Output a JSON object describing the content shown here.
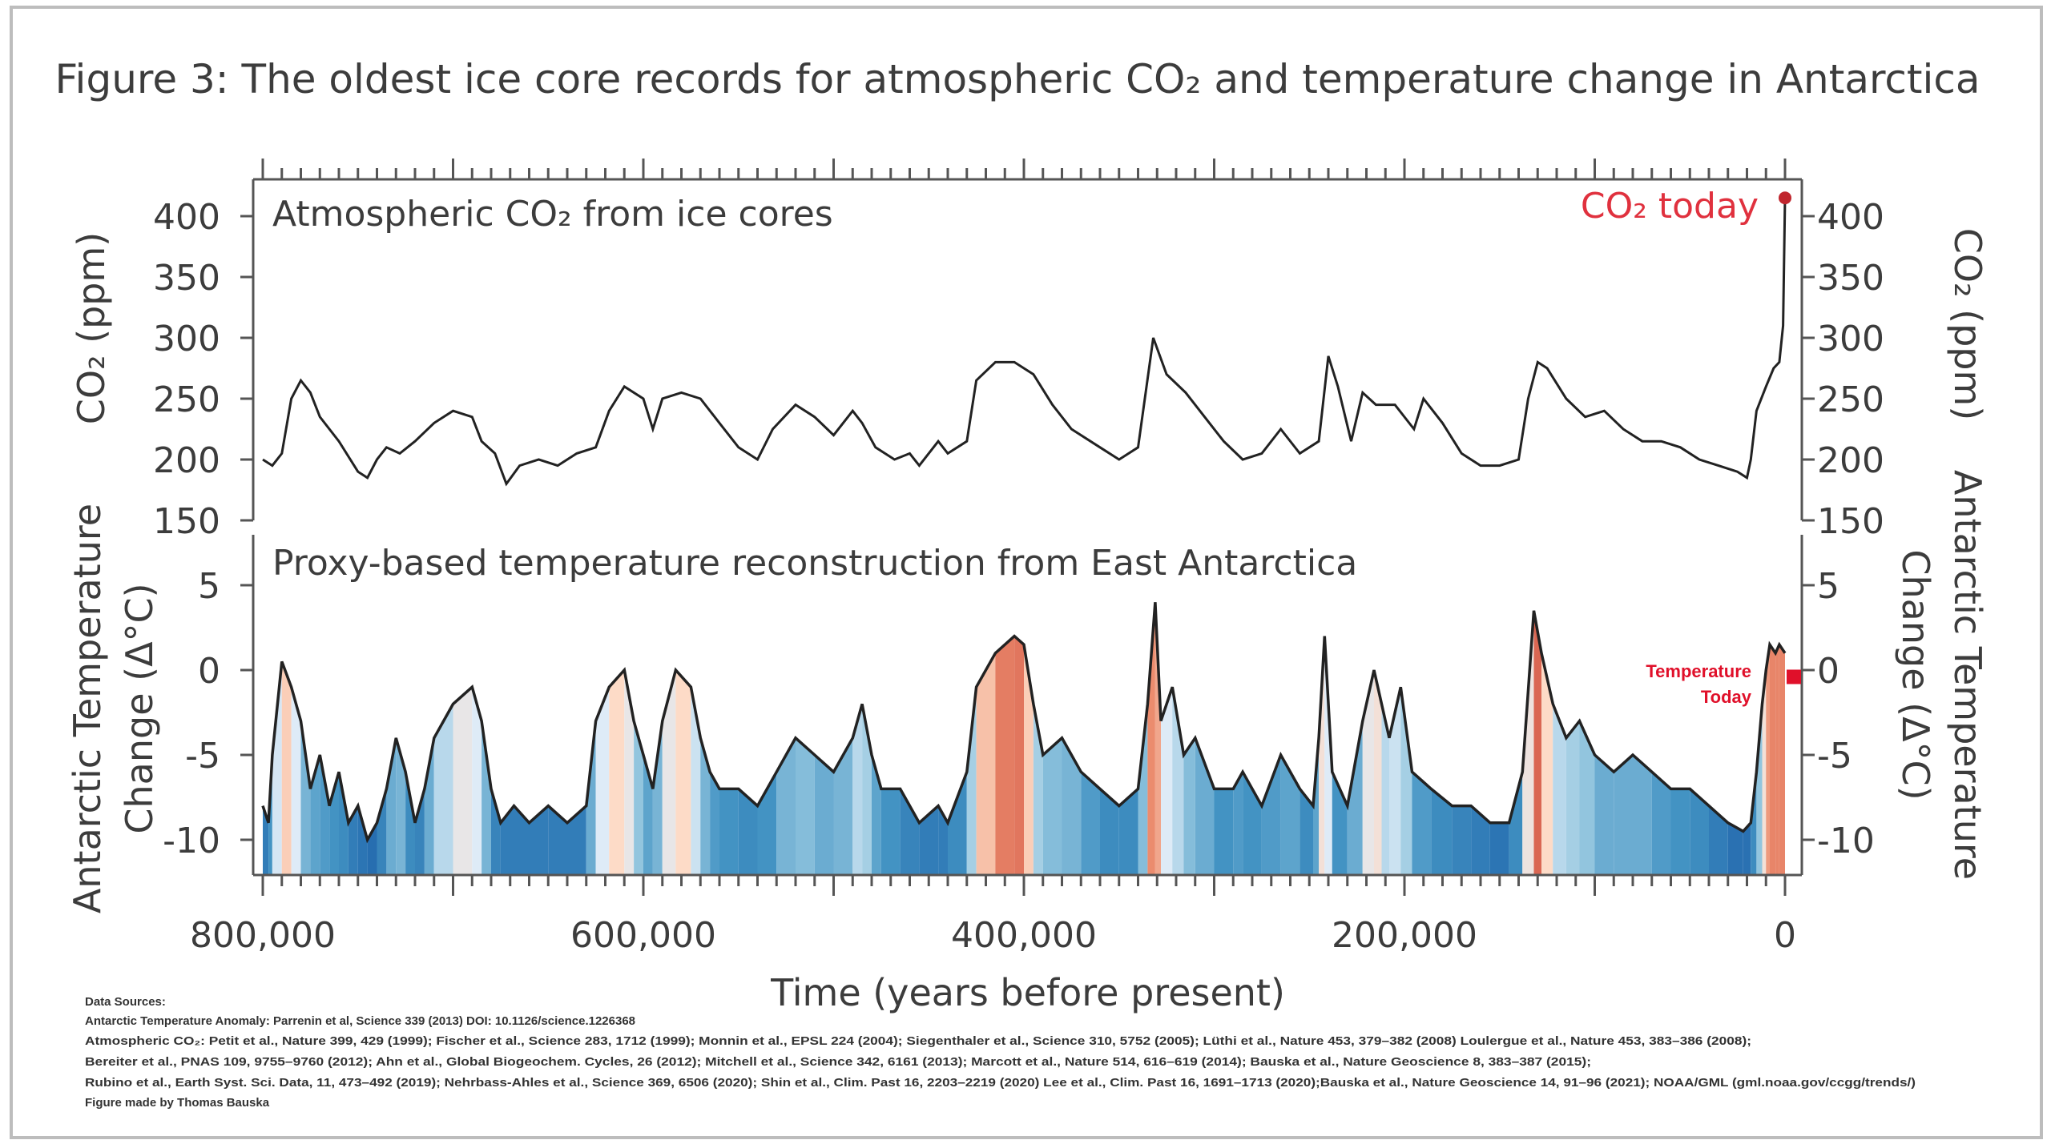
{
  "chart_data": {
    "type": "line",
    "title": "Figure 3:  The oldest ice core records for atmospheric CO₂ and temperature change in Antarctica",
    "xlabel": "Time (years before present)",
    "xlim": [
      800000,
      0
    ],
    "xticks": [
      800000,
      600000,
      400000,
      200000,
      0
    ],
    "xtick_labels": [
      "800,000",
      "600,000",
      "400,000",
      "200,000",
      "0"
    ],
    "panels": [
      {
        "name": "co2",
        "panel_label": "Atmospheric CO₂ from ice cores",
        "ylabel_left": "CO₂ (ppm)",
        "ylabel_right": "CO₂ (ppm)",
        "ylim": [
          150,
          420
        ],
        "yticks": [
          150,
          200,
          250,
          300,
          350,
          400
        ],
        "annotation": "CO₂ today",
        "today_value": 415,
        "series": {
          "name": "Atmospheric CO2",
          "x_kyr": [
            800,
            795,
            790,
            785,
            780,
            775,
            770,
            760,
            750,
            745,
            740,
            735,
            728,
            720,
            710,
            700,
            690,
            685,
            678,
            672,
            665,
            655,
            645,
            635,
            625,
            618,
            610,
            600,
            595,
            590,
            580,
            570,
            560,
            550,
            540,
            532,
            520,
            510,
            500,
            490,
            485,
            478,
            468,
            460,
            455,
            445,
            440,
            430,
            425,
            415,
            405,
            395,
            385,
            375,
            360,
            350,
            340,
            332,
            325,
            315,
            305,
            295,
            285,
            275,
            265,
            255,
            245,
            240,
            235,
            228,
            222,
            215,
            205,
            195,
            190,
            180,
            170,
            160,
            150,
            140,
            135,
            130,
            125,
            115,
            105,
            95,
            85,
            75,
            65,
            55,
            45,
            35,
            25,
            20,
            18,
            15,
            10,
            6,
            3,
            1,
            0
          ],
          "y": [
            200,
            195,
            205,
            250,
            265,
            255,
            235,
            215,
            190,
            185,
            200,
            210,
            205,
            215,
            230,
            240,
            235,
            215,
            205,
            180,
            195,
            200,
            195,
            205,
            210,
            240,
            260,
            250,
            225,
            250,
            255,
            250,
            230,
            210,
            200,
            225,
            245,
            235,
            220,
            240,
            230,
            210,
            200,
            205,
            195,
            215,
            205,
            215,
            265,
            280,
            280,
            270,
            245,
            225,
            210,
            200,
            210,
            300,
            270,
            255,
            235,
            215,
            200,
            205,
            225,
            205,
            215,
            285,
            260,
            215,
            255,
            245,
            245,
            225,
            250,
            230,
            205,
            195,
            195,
            200,
            250,
            280,
            275,
            250,
            235,
            240,
            225,
            215,
            215,
            210,
            200,
            195,
            190,
            185,
            200,
            240,
            260,
            275,
            280,
            310,
            415
          ]
        }
      },
      {
        "name": "temperature",
        "panel_label": "Proxy-based temperature reconstruction from East Antarctica",
        "ylabel_left": [
          "Antarctic Temperature",
          "Change (Δ°C)"
        ],
        "ylabel_right": [
          "Antarctic Temperature",
          "Change (Δ°C)"
        ],
        "ylim": [
          -12,
          7
        ],
        "yticks": [
          -10,
          -5,
          0,
          5
        ],
        "ytick_labels": [
          "-10",
          "-5",
          "0",
          "5"
        ],
        "annotation": [
          "Temperature",
          "Today"
        ],
        "today_value": -0.4,
        "series": {
          "name": "Antarctic temperature change",
          "x_kyr": [
            800,
            797,
            795,
            790,
            785,
            780,
            775,
            770,
            765,
            760,
            755,
            750,
            745,
            740,
            735,
            730,
            725,
            720,
            715,
            710,
            700,
            690,
            685,
            680,
            675,
            668,
            660,
            650,
            640,
            630,
            625,
            618,
            610,
            605,
            600,
            595,
            590,
            583,
            575,
            570,
            565,
            560,
            550,
            540,
            530,
            520,
            510,
            500,
            490,
            485,
            480,
            475,
            465,
            455,
            445,
            440,
            430,
            425,
            415,
            405,
            400,
            395,
            390,
            380,
            370,
            360,
            350,
            340,
            335,
            331,
            328,
            322,
            316,
            310,
            300,
            290,
            285,
            275,
            265,
            255,
            248,
            245,
            242,
            238,
            230,
            222,
            216,
            212,
            208,
            202,
            196,
            186,
            175,
            165,
            155,
            145,
            138,
            132,
            128,
            122,
            115,
            108,
            100,
            90,
            80,
            70,
            60,
            50,
            40,
            30,
            22,
            18,
            15,
            12,
            10,
            8,
            5,
            3,
            0
          ],
          "y": [
            -8,
            -9,
            -5,
            0.5,
            -1,
            -3,
            -7,
            -5,
            -8,
            -6,
            -9,
            -8,
            -10,
            -9,
            -7,
            -4,
            -6,
            -9,
            -7,
            -4,
            -2,
            -1,
            -3,
            -7,
            -9,
            -8,
            -9,
            -8,
            -9,
            -8,
            -3,
            -1,
            0,
            -3,
            -5,
            -7,
            -3,
            0,
            -1,
            -4,
            -6,
            -7,
            -7,
            -8,
            -6,
            -4,
            -5,
            -6,
            -4,
            -2,
            -5,
            -7,
            -7,
            -9,
            -8,
            -9,
            -6,
            -1,
            1,
            2,
            1.5,
            -2,
            -5,
            -4,
            -6,
            -7,
            -8,
            -7,
            -2,
            4,
            -3,
            -1,
            -5,
            -4,
            -7,
            -7,
            -6,
            -8,
            -5,
            -7,
            -8,
            -4,
            2,
            -6,
            -8,
            -3,
            0,
            -2,
            -4,
            -1,
            -6,
            -7,
            -8,
            -8,
            -9,
            -9,
            -6,
            3.5,
            1,
            -2,
            -4,
            -3,
            -5,
            -6,
            -5,
            -6,
            -7,
            -7,
            -8,
            -9,
            -9.5,
            -9,
            -6,
            -2,
            0,
            1.5,
            1,
            1.5,
            1
          ]
        }
      }
    ],
    "colors": {
      "line": "#222222",
      "today": "#e0313e",
      "cold": "#2166ac",
      "warm": "#b2182b"
    }
  },
  "sources": {
    "heading": "Data Sources:",
    "lines": [
      "Antarctic Temperature Anomaly: Parrenin et al, Science 339 (2013) DOI: 10.1126/science.1226368",
      "Atmospheric CO₂:  Petit et al., Nature 399, 429 (1999); Fischer et al., Science 283, 1712 (1999); Monnin et al., EPSL 224 (2004); Siegenthaler et al., Science 310, 5752 (2005); Lüthi et al., Nature 453, 379–382 (2008) Loulergue et al., Nature 453, 383–386 (2008);",
      "Bereiter et al., PNAS 109, 9755–9760 (2012); Ahn et al., Global Biogeochem. Cycles, 26  (2012); Mitchell et al., Science 342, 6161 (2013); Marcott et al., Nature 514, 616–619 (2014);  Bauska et al., Nature Geoscience 8, 383–387 (2015);",
      "Rubino et al., Earth Syst. Sci. Data, 11, 473–492 (2019); Nehrbass-Ahles et al., Science 369, 6506 (2020); Shin et al., Clim. Past 16, 2203–2219 (2020) Lee et al., Clim. Past 16, 1691–1713 (2020);Bauska et al., Nature Geoscience 14, 91–96 (2021); NOAA/GML (gml.noaa.gov/ccgg/trends/)"
    ],
    "credit": "Figure made by Thomas Bauska"
  }
}
